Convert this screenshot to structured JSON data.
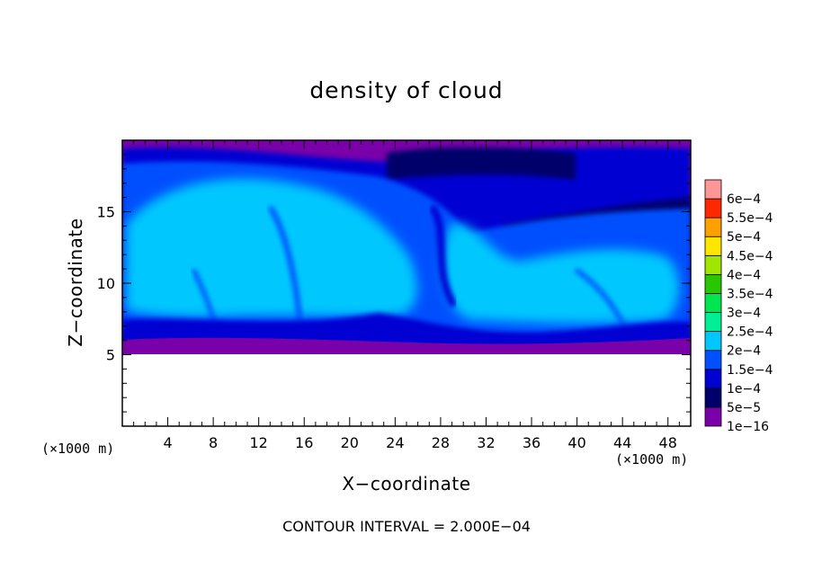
{
  "chart_data": {
    "type": "heatmap",
    "title": "density of cloud",
    "xlabel": "X−coordinate",
    "ylabel": "Z−coordinate",
    "x_unit": "(×1000 m)",
    "xlim": [
      0,
      50
    ],
    "ylim": [
      0,
      20
    ],
    "x_ticks": [
      4,
      8,
      12,
      16,
      20,
      24,
      28,
      32,
      36,
      40,
      44,
      48
    ],
    "x_tick_labels": [
      "4",
      "8",
      "12",
      "16",
      "20",
      "24",
      "28",
      "32",
      "36",
      "40",
      "44",
      "48"
    ],
    "y_ticks": [
      5,
      10,
      15
    ],
    "y_tick_labels": [
      "5",
      "10",
      "15"
    ],
    "footer": "CONTOUR INTERVAL = 2.000E−04",
    "colorbar": {
      "levels": [
        {
          "label": "1e−16",
          "color": "#7a00aa"
        },
        {
          "label": "5e−5",
          "color": "#00006a"
        },
        {
          "label": "1e−4",
          "color": "#0000d2"
        },
        {
          "label": "1.5e−4",
          "color": "#0050ff"
        },
        {
          "label": "2e−4",
          "color": "#00c8ff"
        },
        {
          "label": "2.5e−4",
          "color": "#00ee96"
        },
        {
          "label": "3e−4",
          "color": "#00e650"
        },
        {
          "label": "3.5e−4",
          "color": "#28c800"
        },
        {
          "label": "4e−4",
          "color": "#a0e600"
        },
        {
          "label": "4.5e−4",
          "color": "#ffe600"
        },
        {
          "label": "5e−4",
          "color": "#ffa000"
        },
        {
          "label": "5.5e−4",
          "color": "#ff2800"
        },
        {
          "label": "6e−4",
          "color": "#ff5a5a"
        }
      ],
      "top_color": "#ff9696"
    },
    "fields": {
      "cloud_base_z": 5.2,
      "cloud_top_z": 19.7,
      "description_bands": [
        {
          "z_from": 5.2,
          "z_to": 6.0,
          "level": "1e−16"
        },
        {
          "z_from": 6.0,
          "z_to": 7.5,
          "level": "1e−4"
        },
        {
          "z_from": 7.5,
          "z_to": 17.5,
          "level": "2e−4"
        },
        {
          "z_from": 17.5,
          "z_to": 19.0,
          "level": "1e−4"
        },
        {
          "z_from": 19.0,
          "z_to": 19.7,
          "level": "1e−16"
        }
      ]
    }
  }
}
